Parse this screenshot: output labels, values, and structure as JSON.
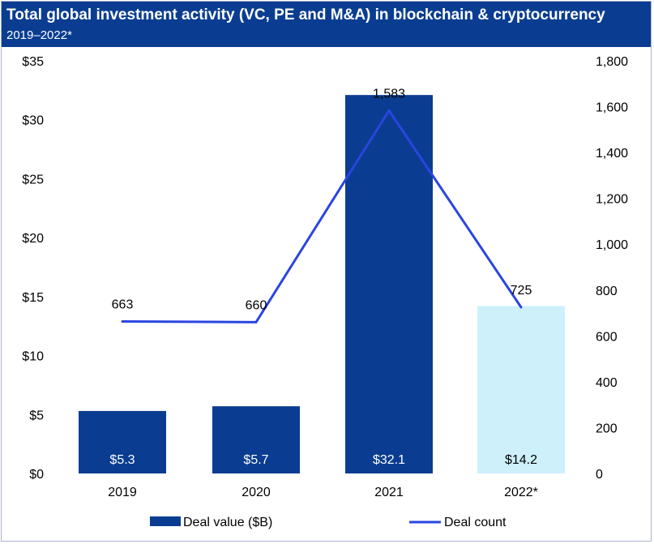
{
  "header": {
    "title": "Total global investment activity (VC, PE and M&A) in blockchain & cryptocurrency",
    "subtitle": "2019–2022*"
  },
  "colors": {
    "header_bg": "#0a3d91",
    "bar": "#0a3d91",
    "bar_estimate": "#cdf0fb",
    "line": "#2a45e0"
  },
  "chart_data": {
    "type": "bar",
    "title": "Total global investment activity (VC, PE and M&A) in blockchain & cryptocurrency",
    "subtitle": "2019–2022*",
    "categories": [
      "2019",
      "2020",
      "2021",
      "2022*"
    ],
    "series": [
      {
        "name": "Deal value ($B)",
        "type": "bar",
        "axis": "left",
        "values": [
          5.3,
          5.7,
          32.1,
          14.2
        ],
        "labels": [
          "$5.3",
          "$5.7",
          "$32.1",
          "$14.2"
        ]
      },
      {
        "name": "Deal count",
        "type": "line",
        "axis": "right",
        "values": [
          663,
          660,
          1583,
          725
        ],
        "labels": [
          "663",
          "660",
          "1,583",
          "725"
        ]
      }
    ],
    "y_left": {
      "range": [
        0,
        35
      ],
      "ticks": [
        0,
        5,
        10,
        15,
        20,
        25,
        30,
        35
      ],
      "tick_labels": [
        "$0",
        "$5",
        "$10",
        "$15",
        "$20",
        "$25",
        "$30",
        "$35"
      ]
    },
    "y_right": {
      "range": [
        0,
        1800
      ],
      "ticks": [
        0,
        200,
        400,
        600,
        800,
        1000,
        1200,
        1400,
        1600,
        1800
      ],
      "tick_labels": [
        "0",
        "200",
        "400",
        "600",
        "800",
        "1,000",
        "1,200",
        "1,400",
        "1,600",
        "1,800"
      ]
    },
    "grid": false,
    "legend": "bottom"
  }
}
